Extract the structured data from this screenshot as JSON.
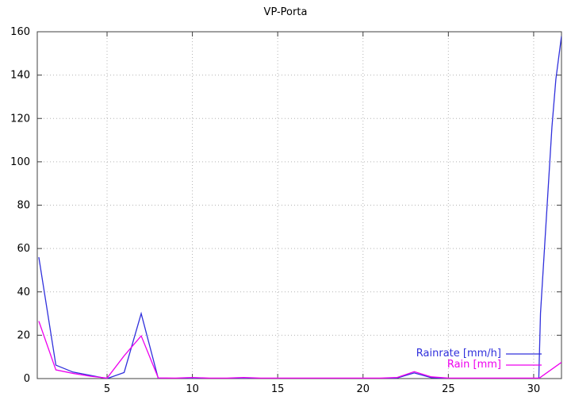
{
  "window": {
    "title": "VP-Porta"
  },
  "chart_data": {
    "type": "line",
    "title": "VP-Porta",
    "xlabel": "",
    "ylabel": "",
    "xlim": [
      0.91,
      31.63
    ],
    "ylim": [
      0,
      160
    ],
    "xticks": [
      5,
      10,
      15,
      20,
      25,
      30
    ],
    "yticks": [
      0,
      20,
      40,
      60,
      80,
      100,
      120,
      140,
      160
    ],
    "grid": true,
    "grid_style": "dotted",
    "legend_position": "bottom-right",
    "colors": {
      "background": "#ffffff",
      "border": "#404040",
      "grid": "#b4b4b4",
      "text": "#000000"
    },
    "series": [
      {
        "name": "Rainrate [mm/h]",
        "color": "#3030dc",
        "points": [
          [
            1,
            56
          ],
          [
            2,
            6.2
          ],
          [
            3,
            3
          ],
          [
            4,
            1.5
          ],
          [
            5,
            0
          ],
          [
            6,
            2.8
          ],
          [
            7,
            30
          ],
          [
            8,
            0
          ],
          [
            9,
            0
          ],
          [
            10,
            0
          ],
          [
            11,
            0
          ],
          [
            12,
            0
          ],
          [
            13,
            0
          ],
          [
            14,
            0
          ],
          [
            15,
            0
          ],
          [
            16,
            0
          ],
          [
            17,
            0
          ],
          [
            18,
            0
          ],
          [
            19,
            0
          ],
          [
            20,
            0
          ],
          [
            21,
            0
          ],
          [
            22,
            0.3
          ],
          [
            23,
            2.6
          ],
          [
            24,
            0.4
          ],
          [
            25,
            0
          ],
          [
            26,
            0
          ],
          [
            27,
            0
          ],
          [
            28,
            0
          ],
          [
            29,
            0
          ],
          [
            30,
            0
          ],
          [
            30.3,
            0
          ],
          [
            30.4,
            30
          ],
          [
            31.07,
            116
          ],
          [
            31.3,
            138
          ],
          [
            31.63,
            158
          ]
        ]
      },
      {
        "name": "Rain [mm]",
        "color": "#ee00ee",
        "points": [
          [
            1,
            26.5
          ],
          [
            2,
            4
          ],
          [
            3,
            2.4
          ],
          [
            4,
            1.1
          ],
          [
            5,
            0.2
          ],
          [
            6,
            10.5
          ],
          [
            7,
            19.7
          ],
          [
            8,
            0.3
          ],
          [
            9,
            0.2
          ],
          [
            10,
            0.5
          ],
          [
            11,
            0.2
          ],
          [
            12,
            0.2
          ],
          [
            13,
            0.5
          ],
          [
            14,
            0.2
          ],
          [
            15,
            0.2
          ],
          [
            16,
            0.2
          ],
          [
            17,
            0.2
          ],
          [
            18,
            0.2
          ],
          [
            19,
            0.2
          ],
          [
            20,
            0.2
          ],
          [
            21,
            0.2
          ],
          [
            22,
            0.5
          ],
          [
            23,
            3.2
          ],
          [
            24,
            0.8
          ],
          [
            25,
            0.2
          ],
          [
            26,
            0.2
          ],
          [
            27,
            0.2
          ],
          [
            28,
            0.2
          ],
          [
            29,
            0.2
          ],
          [
            30,
            0.2
          ],
          [
            30.33,
            0.2
          ],
          [
            31.63,
            7.5
          ]
        ]
      }
    ]
  }
}
